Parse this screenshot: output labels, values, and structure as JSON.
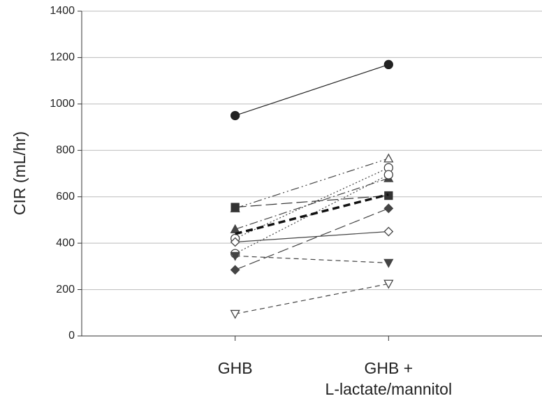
{
  "chart_data": {
    "type": "line",
    "y_label": "CIR (mL/hr)",
    "categories": [
      "GHB",
      "GHB +\nL-lactate/mannitol"
    ],
    "ylim": [
      0,
      1400
    ],
    "yticks": [
      0,
      200,
      400,
      600,
      800,
      1000,
      1200,
      1400
    ],
    "grid": true,
    "series": [
      {
        "color": "#222",
        "marker": "circle",
        "filled": true,
        "dash": "solid",
        "values": [
          950,
          1170
        ]
      },
      {
        "color": "#444",
        "marker": "triangle",
        "filled": false,
        "dash": "dashdotdot",
        "values": [
          550,
          765
        ]
      },
      {
        "color": "#444",
        "marker": "circle",
        "filled": false,
        "dash": "dot",
        "values": [
          420,
          725
        ]
      },
      {
        "color": "#444",
        "marker": "triangle",
        "filled": true,
        "dash": "dashdot",
        "values": [
          460,
          680
        ]
      },
      {
        "color": "#444",
        "marker": "circle",
        "filled": false,
        "dash": "dot",
        "values": [
          355,
          695
        ]
      },
      {
        "color": "#333",
        "marker": "square",
        "filled": true,
        "dash": "longdash",
        "values": [
          555,
          605
        ]
      },
      {
        "color": "#111",
        "marker": "none",
        "filled": true,
        "dash": "bolddash",
        "values": [
          440,
          610
        ]
      },
      {
        "color": "#444",
        "marker": "diamond",
        "filled": true,
        "dash": "longdash",
        "values": [
          285,
          550
        ]
      },
      {
        "color": "#444",
        "marker": "diamond",
        "filled": false,
        "dash": "solid",
        "values": [
          405,
          450
        ]
      },
      {
        "color": "#444",
        "marker": "triangle-down",
        "filled": true,
        "dash": "dash",
        "values": [
          345,
          315
        ]
      },
      {
        "color": "#444",
        "marker": "triangle-down",
        "filled": false,
        "dash": "dash",
        "values": [
          95,
          225
        ]
      }
    ]
  }
}
